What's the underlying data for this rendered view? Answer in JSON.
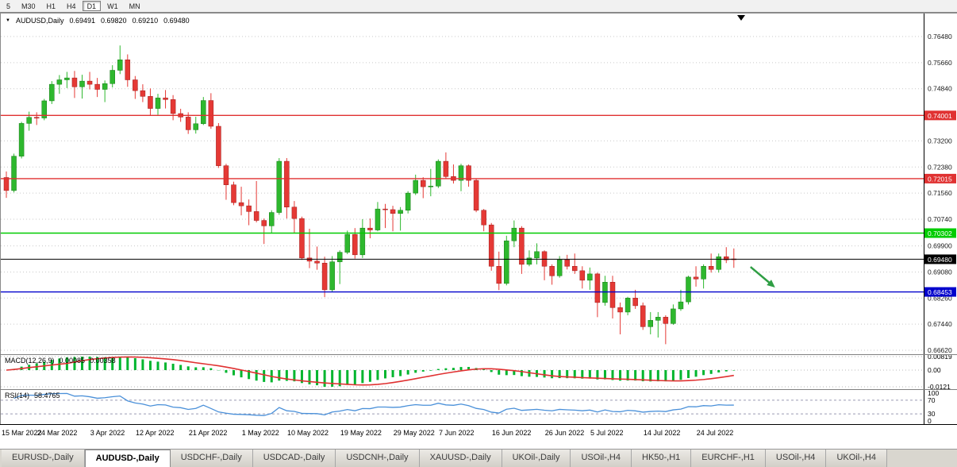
{
  "toolbar": {
    "timeframes": [
      "5",
      "M30",
      "H1",
      "H4",
      "D1",
      "W1",
      "MN"
    ],
    "active_timeframe": "D1"
  },
  "header": {
    "symbol": "AUDUSD,Daily",
    "open": "0.69491",
    "high": "0.69820",
    "low": "0.69210",
    "close": "0.69480"
  },
  "macd": {
    "name_label": "MACD(12,26,9)",
    "value_main": "0.00085",
    "value_signal": "0.00358",
    "fast": 12,
    "slow": 26,
    "signal": 9,
    "axis": {
      "top_label": "0.00819",
      "zero_label": "0.00",
      "bottom_label": "-0.0121"
    },
    "histogram_color": "#00b52e",
    "signal_color": "#e03131"
  },
  "rsi": {
    "name_label": "RSI(14)",
    "value": "58.4765",
    "period": 14,
    "axis_labels": [
      "100",
      "70",
      "30",
      "0"
    ],
    "upper_level": 70,
    "lower_level": 30,
    "line_color": "#4a90d9"
  },
  "chart_data": {
    "type": "candlestick",
    "symbol": "AUDUSD-",
    "timeframe": "Daily",
    "up_color": "#2eb82e",
    "down_color": "#e53935",
    "price_axis": {
      "view_max": 0.7718,
      "view_min": 0.6652,
      "tick_labels": [
        "0.76480",
        "0.75660",
        "0.74840",
        "0.73200",
        "0.72380",
        "0.71560",
        "0.70740",
        "0.69900",
        "0.69080",
        "0.68260",
        "0.67440",
        "0.66620"
      ]
    },
    "levels": [
      {
        "label": "0.74001",
        "value": 0.74001,
        "color": "#e03131",
        "style": "resistance"
      },
      {
        "label": "0.72015",
        "value": 0.72015,
        "color": "#e03131",
        "style": "resistance"
      },
      {
        "label": "0.70302",
        "value": 0.70302,
        "color": "#00cc00",
        "style": "level"
      },
      {
        "label": "0.69480",
        "value": 0.6948,
        "color": "#000000",
        "style": "current-price"
      },
      {
        "label": "0.68453",
        "value": 0.68453,
        "color": "#0000cc",
        "style": "support"
      }
    ],
    "candles": [
      [
        0.7205,
        0.7224,
        0.7141,
        0.7164
      ],
      [
        0.7164,
        0.728,
        0.7158,
        0.7272
      ],
      [
        0.7272,
        0.738,
        0.7265,
        0.7375
      ],
      [
        0.7375,
        0.7412,
        0.7352,
        0.7394
      ],
      [
        0.7394,
        0.741,
        0.737,
        0.7392
      ],
      [
        0.7392,
        0.7452,
        0.7385,
        0.7446
      ],
      [
        0.7446,
        0.7508,
        0.7436,
        0.7498
      ],
      [
        0.7498,
        0.7527,
        0.7468,
        0.7512
      ],
      [
        0.7512,
        0.7537,
        0.7486,
        0.7518
      ],
      [
        0.7518,
        0.754,
        0.7455,
        0.749
      ],
      [
        0.749,
        0.7528,
        0.7453,
        0.7508
      ],
      [
        0.7508,
        0.7537,
        0.7482,
        0.7498
      ],
      [
        0.7498,
        0.7518,
        0.7458,
        0.7482
      ],
      [
        0.7482,
        0.751,
        0.7442,
        0.75
      ],
      [
        0.75,
        0.7558,
        0.7488,
        0.7542
      ],
      [
        0.7542,
        0.762,
        0.753,
        0.7575
      ],
      [
        0.7575,
        0.7592,
        0.749,
        0.7512
      ],
      [
        0.7512,
        0.7524,
        0.7452,
        0.7478
      ],
      [
        0.7478,
        0.7498,
        0.7442,
        0.746
      ],
      [
        0.746,
        0.7485,
        0.7399,
        0.7422
      ],
      [
        0.7422,
        0.7468,
        0.7402,
        0.7455
      ],
      [
        0.7455,
        0.748,
        0.7422,
        0.745
      ],
      [
        0.745,
        0.7464,
        0.7385,
        0.7406
      ],
      [
        0.7406,
        0.7421,
        0.738,
        0.7395
      ],
      [
        0.7395,
        0.741,
        0.7342,
        0.7355
      ],
      [
        0.7355,
        0.7396,
        0.7343,
        0.7374
      ],
      [
        0.7374,
        0.7458,
        0.737,
        0.7447
      ],
      [
        0.7447,
        0.747,
        0.7358,
        0.7366
      ],
      [
        0.7366,
        0.7376,
        0.7235,
        0.7242
      ],
      [
        0.7242,
        0.7248,
        0.7135,
        0.7182
      ],
      [
        0.7182,
        0.7192,
        0.7118,
        0.7126
      ],
      [
        0.7126,
        0.7176,
        0.7086,
        0.7116
      ],
      [
        0.7116,
        0.7136,
        0.7055,
        0.7098
      ],
      [
        0.7098,
        0.7194,
        0.7064,
        0.707
      ],
      [
        0.707,
        0.7076,
        0.6996,
        0.7053
      ],
      [
        0.7053,
        0.7102,
        0.7029,
        0.7095
      ],
      [
        0.7095,
        0.7266,
        0.7088,
        0.7256
      ],
      [
        0.7256,
        0.7266,
        0.7076,
        0.7112
      ],
      [
        0.7112,
        0.7131,
        0.703,
        0.7076
      ],
      [
        0.7076,
        0.7082,
        0.6946,
        0.6952
      ],
      [
        0.6952,
        0.7044,
        0.692,
        0.6942
      ],
      [
        0.6942,
        0.6988,
        0.6915,
        0.6936
      ],
      [
        0.6936,
        0.6956,
        0.6829,
        0.6852
      ],
      [
        0.6852,
        0.6958,
        0.6846,
        0.694
      ],
      [
        0.694,
        0.6976,
        0.687,
        0.697
      ],
      [
        0.697,
        0.7038,
        0.6964,
        0.7026
      ],
      [
        0.7026,
        0.7046,
        0.695,
        0.6962
      ],
      [
        0.6962,
        0.7074,
        0.6952,
        0.7046
      ],
      [
        0.7046,
        0.7076,
        0.7014,
        0.704
      ],
      [
        0.704,
        0.7128,
        0.7036,
        0.7106
      ],
      [
        0.7106,
        0.7122,
        0.7046,
        0.7104
      ],
      [
        0.7104,
        0.7116,
        0.7036,
        0.7092
      ],
      [
        0.7092,
        0.7112,
        0.7038,
        0.7102
      ],
      [
        0.7102,
        0.7162,
        0.7092,
        0.7156
      ],
      [
        0.7156,
        0.7214,
        0.715,
        0.7196
      ],
      [
        0.7196,
        0.7206,
        0.714,
        0.7176
      ],
      [
        0.7176,
        0.7232,
        0.7146,
        0.7178
      ],
      [
        0.7178,
        0.7262,
        0.7172,
        0.7256
      ],
      [
        0.7256,
        0.7284,
        0.72,
        0.7208
      ],
      [
        0.7208,
        0.7246,
        0.7186,
        0.7196
      ],
      [
        0.7196,
        0.7248,
        0.7162,
        0.7242
      ],
      [
        0.7242,
        0.7246,
        0.7176,
        0.7196
      ],
      [
        0.7196,
        0.7202,
        0.7096,
        0.7102
      ],
      [
        0.7102,
        0.7106,
        0.7036,
        0.7056
      ],
      [
        0.7056,
        0.7062,
        0.6912,
        0.6926
      ],
      [
        0.6926,
        0.6972,
        0.6851,
        0.6872
      ],
      [
        0.6872,
        0.7022,
        0.6866,
        0.7006
      ],
      [
        0.7006,
        0.707,
        0.6986,
        0.7046
      ],
      [
        0.7046,
        0.7052,
        0.6902,
        0.6932
      ],
      [
        0.6932,
        0.6976,
        0.6926,
        0.6952
      ],
      [
        0.6952,
        0.6998,
        0.6932,
        0.6972
      ],
      [
        0.6972,
        0.6976,
        0.6882,
        0.6926
      ],
      [
        0.6926,
        0.6932,
        0.6868,
        0.6896
      ],
      [
        0.6896,
        0.6958,
        0.689,
        0.6946
      ],
      [
        0.6946,
        0.6962,
        0.6916,
        0.6926
      ],
      [
        0.6926,
        0.6966,
        0.6902,
        0.6912
      ],
      [
        0.6912,
        0.6926,
        0.6856,
        0.6882
      ],
      [
        0.6882,
        0.6922,
        0.6852,
        0.6902
      ],
      [
        0.6902,
        0.6906,
        0.6766,
        0.6812
      ],
      [
        0.6812,
        0.6896,
        0.6802,
        0.6876
      ],
      [
        0.6876,
        0.6896,
        0.6762,
        0.6796
      ],
      [
        0.6796,
        0.6812,
        0.6712,
        0.6782
      ],
      [
        0.6782,
        0.683,
        0.6772,
        0.6826
      ],
      [
        0.6826,
        0.6852,
        0.6792,
        0.6802
      ],
      [
        0.6802,
        0.6812,
        0.6726,
        0.6736
      ],
      [
        0.6736,
        0.6782,
        0.6712,
        0.6756
      ],
      [
        0.6756,
        0.6782,
        0.6702,
        0.6766
      ],
      [
        0.6766,
        0.6772,
        0.6681,
        0.6746
      ],
      [
        0.6746,
        0.6806,
        0.6742,
        0.6792
      ],
      [
        0.6792,
        0.6852,
        0.6786,
        0.6814
      ],
      [
        0.6814,
        0.6896,
        0.6806,
        0.6892
      ],
      [
        0.6892,
        0.6926,
        0.6862,
        0.6886
      ],
      [
        0.6886,
        0.6932,
        0.6856,
        0.6926
      ],
      [
        0.6926,
        0.6966,
        0.6906,
        0.6916
      ],
      [
        0.6916,
        0.6966,
        0.6906,
        0.6956
      ],
      [
        0.6956,
        0.6986,
        0.6936,
        0.6946
      ],
      [
        0.6949,
        0.6982,
        0.6921,
        0.6948
      ]
    ],
    "x_labels": [
      {
        "label": "15 Mar 2022",
        "bar": 0
      },
      {
        "label": "24 Mar 2022",
        "bar": 7
      },
      {
        "label": "3 Apr 2022",
        "bar": 14
      },
      {
        "label": "12 Apr 2022",
        "bar": 20
      },
      {
        "label": "21 Apr 2022",
        "bar": 27
      },
      {
        "label": "1 May 2022",
        "bar": 34
      },
      {
        "label": "10 May 2022",
        "bar": 40
      },
      {
        "label": "19 May 2022",
        "bar": 47
      },
      {
        "label": "29 May 2022",
        "bar": 54
      },
      {
        "label": "7 Jun 2022",
        "bar": 60
      },
      {
        "label": "16 Jun 2022",
        "bar": 67
      },
      {
        "label": "26 Jun 2022",
        "bar": 74
      },
      {
        "label": "5 Jul 2022",
        "bar": 80
      },
      {
        "label": "14 Jul 2022",
        "bar": 87
      },
      {
        "label": "24 Jul 2022",
        "bar": 94
      }
    ],
    "annotation_arrow": {
      "color": "#2f9e44",
      "from": {
        "bar": 98.2,
        "price": 0.6924
      },
      "to": {
        "bar": 100.8,
        "price": 0.6872
      }
    }
  },
  "tabs": [
    {
      "label": "EURUSD-,Daily",
      "active": false
    },
    {
      "label": "AUDUSD-,Daily",
      "active": true
    },
    {
      "label": "USDCHF-,Daily",
      "active": false
    },
    {
      "label": "USDCAD-,Daily",
      "active": false
    },
    {
      "label": "USDCNH-,Daily",
      "active": false
    },
    {
      "label": "XAUUSD-,Daily",
      "active": false
    },
    {
      "label": "UKOil-,Daily",
      "active": false
    },
    {
      "label": "USOil-,H4",
      "active": false
    },
    {
      "label": "HK50-,H1",
      "active": false
    },
    {
      "label": "EURCHF-,H1",
      "active": false
    },
    {
      "label": "USOil-,H4",
      "active": false
    },
    {
      "label": "UKOil-,H4",
      "active": false
    }
  ]
}
